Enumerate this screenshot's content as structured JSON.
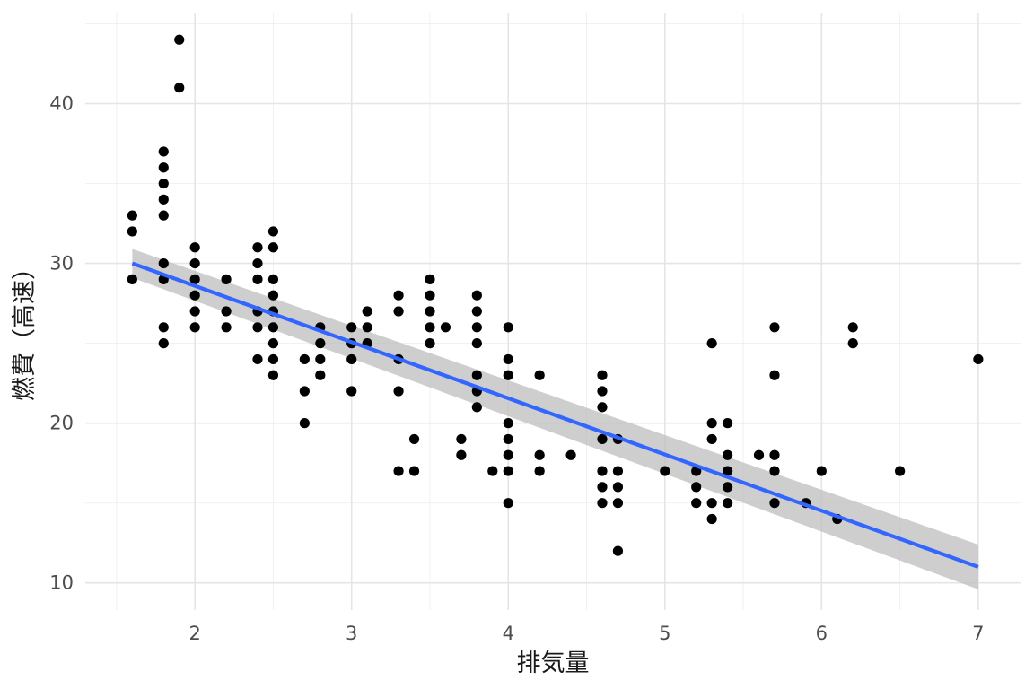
{
  "chart_data": {
    "type": "scatter",
    "title": "",
    "xlabel": "排気量",
    "ylabel": "燃費（高速）",
    "xlim": [
      1.3,
      7.27
    ],
    "ylim": [
      8.3,
      45.7
    ],
    "x_ticks": [
      2,
      3,
      4,
      5,
      6,
      7
    ],
    "y_ticks": [
      10,
      20,
      30,
      40
    ],
    "grid": true,
    "legend": "none",
    "colors": {
      "points": "#000000",
      "fit_line": "#3366FF",
      "ribbon": "#BEBEBE"
    },
    "series": [
      {
        "points": [
          [
            1.6,
            33
          ],
          [
            1.6,
            32
          ],
          [
            1.6,
            29
          ],
          [
            1.8,
            37
          ],
          [
            1.8,
            36
          ],
          [
            1.8,
            35
          ],
          [
            1.8,
            34
          ],
          [
            1.8,
            33
          ],
          [
            1.8,
            30
          ],
          [
            1.8,
            29
          ],
          [
            1.8,
            26
          ],
          [
            1.8,
            25
          ],
          [
            1.9,
            44
          ],
          [
            1.9,
            41
          ],
          [
            2.0,
            31
          ],
          [
            2.0,
            30
          ],
          [
            2.0,
            29
          ],
          [
            2.0,
            28
          ],
          [
            2.0,
            27
          ],
          [
            2.0,
            26
          ],
          [
            2.2,
            29
          ],
          [
            2.2,
            27
          ],
          [
            2.2,
            26
          ],
          [
            2.4,
            31
          ],
          [
            2.4,
            30
          ],
          [
            2.4,
            29
          ],
          [
            2.4,
            27
          ],
          [
            2.4,
            26
          ],
          [
            2.4,
            24
          ],
          [
            2.5,
            32
          ],
          [
            2.5,
            31
          ],
          [
            2.5,
            29
          ],
          [
            2.5,
            28
          ],
          [
            2.5,
            27
          ],
          [
            2.5,
            26
          ],
          [
            2.5,
            25
          ],
          [
            2.5,
            24
          ],
          [
            2.5,
            23
          ],
          [
            2.7,
            24
          ],
          [
            2.7,
            22
          ],
          [
            2.7,
            20
          ],
          [
            2.8,
            26
          ],
          [
            2.8,
            25
          ],
          [
            2.8,
            24
          ],
          [
            2.8,
            23
          ],
          [
            3.0,
            26
          ],
          [
            3.0,
            25
          ],
          [
            3.0,
            24
          ],
          [
            3.0,
            22
          ],
          [
            3.1,
            27
          ],
          [
            3.1,
            26
          ],
          [
            3.1,
            25
          ],
          [
            3.3,
            28
          ],
          [
            3.3,
            27
          ],
          [
            3.3,
            24
          ],
          [
            3.3,
            22
          ],
          [
            3.3,
            17
          ],
          [
            3.4,
            19
          ],
          [
            3.4,
            17
          ],
          [
            3.5,
            29
          ],
          [
            3.5,
            28
          ],
          [
            3.5,
            27
          ],
          [
            3.5,
            26
          ],
          [
            3.5,
            25
          ],
          [
            3.6,
            26
          ],
          [
            3.7,
            19
          ],
          [
            3.7,
            18
          ],
          [
            3.8,
            28
          ],
          [
            3.8,
            27
          ],
          [
            3.8,
            26
          ],
          [
            3.8,
            25
          ],
          [
            3.8,
            23
          ],
          [
            3.8,
            22
          ],
          [
            3.8,
            21
          ],
          [
            3.9,
            17
          ],
          [
            4.0,
            26
          ],
          [
            4.0,
            24
          ],
          [
            4.0,
            23
          ],
          [
            4.0,
            20
          ],
          [
            4.0,
            19
          ],
          [
            4.0,
            18
          ],
          [
            4.0,
            17
          ],
          [
            4.0,
            15
          ],
          [
            4.2,
            23
          ],
          [
            4.2,
            18
          ],
          [
            4.2,
            17
          ],
          [
            4.4,
            18
          ],
          [
            4.6,
            23
          ],
          [
            4.6,
            22
          ],
          [
            4.6,
            21
          ],
          [
            4.6,
            19
          ],
          [
            4.6,
            17
          ],
          [
            4.6,
            16
          ],
          [
            4.6,
            15
          ],
          [
            4.7,
            19
          ],
          [
            4.7,
            17
          ],
          [
            4.7,
            16
          ],
          [
            4.7,
            15
          ],
          [
            4.7,
            12
          ],
          [
            5.0,
            17
          ],
          [
            5.2,
            17
          ],
          [
            5.2,
            16
          ],
          [
            5.2,
            15
          ],
          [
            5.3,
            25
          ],
          [
            5.3,
            20
          ],
          [
            5.3,
            19
          ],
          [
            5.3,
            15
          ],
          [
            5.3,
            14
          ],
          [
            5.4,
            20
          ],
          [
            5.4,
            18
          ],
          [
            5.4,
            17
          ],
          [
            5.4,
            16
          ],
          [
            5.4,
            15
          ],
          [
            5.6,
            18
          ],
          [
            5.7,
            26
          ],
          [
            5.7,
            23
          ],
          [
            5.7,
            18
          ],
          [
            5.7,
            17
          ],
          [
            5.7,
            15
          ],
          [
            5.9,
            15
          ],
          [
            6.0,
            17
          ],
          [
            6.1,
            14
          ],
          [
            6.2,
            26
          ],
          [
            6.2,
            25
          ],
          [
            6.5,
            17
          ],
          [
            7.0,
            24
          ]
        ]
      }
    ],
    "fit": {
      "method": "linear",
      "x": [
        1.6,
        7.0
      ],
      "y": [
        30.0,
        11.0
      ],
      "ci_upper": [
        30.9,
        12.4
      ],
      "ci_lower": [
        29.1,
        9.6
      ]
    }
  }
}
